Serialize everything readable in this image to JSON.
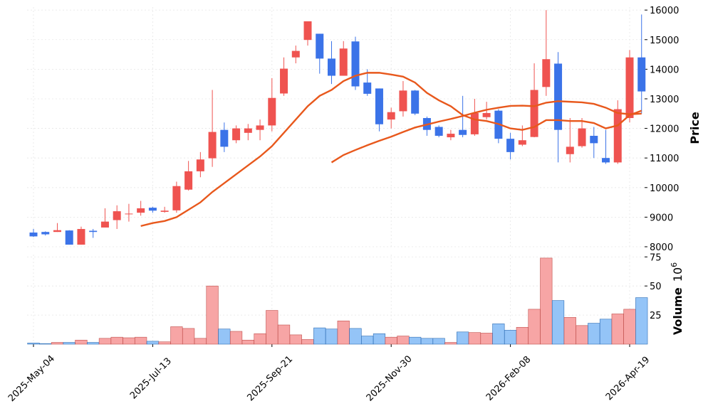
{
  "chart_data": {
    "type": "candlestick",
    "categories": [
      "2025-May-04",
      null,
      null,
      null,
      null,
      null,
      null,
      null,
      null,
      null,
      "2025-Jul-13",
      null,
      null,
      null,
      null,
      null,
      null,
      null,
      null,
      null,
      "2025-Sep-21",
      null,
      null,
      null,
      null,
      null,
      null,
      null,
      null,
      null,
      "2025-Nov-30",
      null,
      null,
      null,
      null,
      null,
      null,
      null,
      null,
      null,
      "2026-Feb-08",
      null,
      null,
      null,
      null,
      null,
      null,
      null,
      null,
      null,
      "2026-Apr-19",
      null
    ],
    "open": [
      8480,
      8500,
      8500,
      8550,
      8070,
      8540,
      8650,
      8900,
      9100,
      9150,
      9320,
      9180,
      9230,
      9930,
      10550,
      10990,
      11950,
      11600,
      11850,
      11950,
      12100,
      13180,
      14400,
      14990,
      15200,
      14360,
      13780,
      14940,
      13550,
      13350,
      12300,
      12580,
      13280,
      12350,
      12050,
      11700,
      11950,
      11800,
      12380,
      12600,
      11650,
      11450,
      11710,
      13400,
      14190,
      11130,
      11400,
      11750,
      11000,
      10850,
      12350,
      14400
    ],
    "high": [
      8600,
      8520,
      8800,
      8560,
      8680,
      8600,
      9300,
      9400,
      9450,
      9550,
      9350,
      9350,
      10200,
      10900,
      11200,
      13300,
      12200,
      12100,
      12150,
      12300,
      13700,
      14400,
      14800,
      15620,
      15200,
      14950,
      14950,
      15100,
      14000,
      13350,
      12700,
      13600,
      13300,
      12400,
      12100,
      11950,
      13100,
      13000,
      12900,
      12650,
      11850,
      12100,
      14200,
      16000,
      14580,
      12350,
      12350,
      12050,
      11950,
      12950,
      14650,
      15850
    ],
    "low": [
      8330,
      8380,
      8500,
      8070,
      8070,
      8300,
      8650,
      8600,
      8850,
      9050,
      9150,
      9150,
      9150,
      9900,
      10350,
      10700,
      11200,
      11500,
      11600,
      11600,
      11900,
      13100,
      14200,
      14800,
      13850,
      13500,
      13780,
      13300,
      13100,
      11900,
      12000,
      12400,
      12450,
      11750,
      11700,
      11600,
      11700,
      11750,
      12300,
      11500,
      10950,
      11400,
      11700,
      13100,
      10850,
      10850,
      11350,
      11000,
      10800,
      10800,
      12200,
      12500
    ],
    "close": [
      8350,
      8420,
      8560,
      8070,
      8600,
      8500,
      8850,
      9200,
      9120,
      9300,
      9220,
      9220,
      10050,
      10550,
      10950,
      11880,
      11380,
      12000,
      12000,
      12100,
      13030,
      14020,
      14620,
      15620,
      14360,
      13780,
      14700,
      13420,
      13170,
      12140,
      12550,
      13280,
      12500,
      11950,
      11750,
      11820,
      11780,
      12520,
      12520,
      11650,
      11200,
      11600,
      13300,
      14340,
      11950,
      11380,
      12000,
      11500,
      10850,
      12650,
      14400,
      13250
    ],
    "up_color": "#ef5350",
    "down_color": "#3b73e8",
    "moving_averages": [
      {
        "color": "#e8581c",
        "values": [
          null,
          null,
          null,
          null,
          null,
          null,
          null,
          null,
          null,
          8700,
          8800,
          8870,
          9000,
          9250,
          9500,
          9850,
          10150,
          10450,
          10750,
          11050,
          11400,
          11850,
          12300,
          12750,
          13100,
          13300,
          13600,
          13780,
          13880,
          13880,
          13820,
          13750,
          13550,
          13200,
          12950,
          12750,
          12450,
          12300,
          12250,
          12150,
          12000,
          11950,
          12050,
          12280,
          12280,
          12250,
          12250,
          12180,
          12000,
          12100,
          12450,
          12600
        ]
      },
      {
        "color": "#e8581c",
        "values": [
          null,
          null,
          null,
          null,
          null,
          null,
          null,
          null,
          null,
          null,
          null,
          null,
          null,
          null,
          null,
          null,
          null,
          null,
          null,
          null,
          null,
          null,
          null,
          null,
          null,
          10850,
          11100,
          11270,
          11430,
          11580,
          11720,
          11880,
          12030,
          12130,
          12230,
          12320,
          12420,
          12530,
          12630,
          12700,
          12760,
          12770,
          12750,
          12870,
          12920,
          12900,
          12880,
          12830,
          12700,
          12520,
          12480,
          12500
        ]
      }
    ],
    "volume": [
      1,
      0.5,
      1.5,
      1.5,
      3.5,
      1.5,
      5,
      6,
      5.5,
      6,
      2.5,
      2,
      15,
      13.5,
      5,
      50,
      13,
      11,
      3.5,
      9,
      29,
      16.5,
      8,
      4,
      14,
      13,
      20,
      13.5,
      7,
      9,
      6,
      7,
      6,
      5,
      5,
      1.5,
      10.5,
      10,
      9.5,
      17.5,
      12,
      14.5,
      30,
      74,
      37.5,
      23,
      16,
      18,
      21.5,
      26,
      30,
      40
    ],
    "volume_up_color": "#f7a5a5",
    "volume_down_color": "#94c4f7",
    "ylabel": "Price",
    "ylim": [
      8000,
      16100
    ],
    "yticks": [
      8000,
      9000,
      10000,
      11000,
      12000,
      13000,
      14000,
      15000,
      16000
    ],
    "volume_label": "Volume",
    "volume_multiplier": {
      "base": "10",
      "exponent": "6"
    },
    "volume_ylim": [
      0,
      77
    ],
    "volume_yticks": [
      25,
      50,
      75
    ],
    "grid": true
  }
}
